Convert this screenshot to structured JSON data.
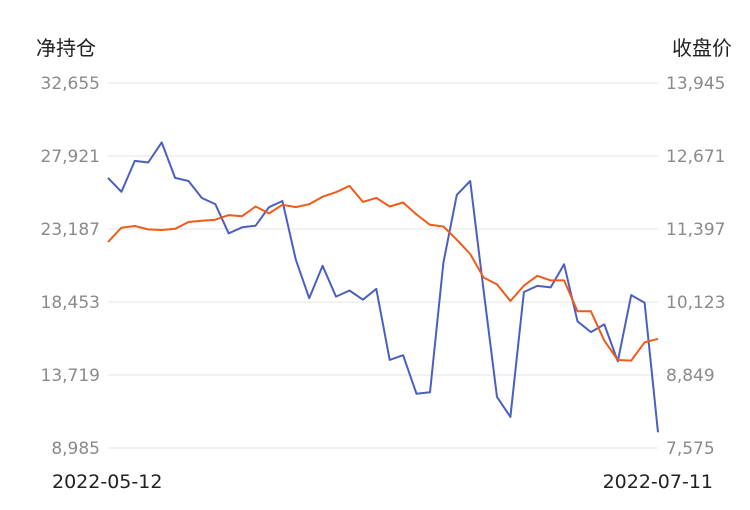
{
  "chart_data": {
    "type": "line",
    "left_axis": {
      "label": "净持仓",
      "ticks": [
        "32,655",
        "27,921",
        "23,187",
        "18,453",
        "13,719",
        "8,985"
      ],
      "ylim": [
        8985,
        32655
      ]
    },
    "right_axis": {
      "label": "收盘价",
      "ticks": [
        "13,945",
        "12,671",
        "11,397",
        "10,123",
        "8,849",
        "7,575"
      ],
      "ylim": [
        7575,
        13945
      ]
    },
    "x_labels": {
      "start": "2022-05-12",
      "end": "2022-07-11"
    },
    "grid": true,
    "series": [
      {
        "color": "#4a5fc1",
        "axis": "left",
        "values": [
          26500,
          25600,
          27600,
          27500,
          28800,
          26500,
          26300,
          25200,
          24800,
          22900,
          23300,
          23400,
          24600,
          25000,
          21200,
          18700,
          20800,
          18800,
          19200,
          18600,
          19300,
          14700,
          15000,
          12500,
          12600,
          21000,
          25400,
          26300,
          19200,
          12300,
          11000,
          19100,
          19500,
          19400,
          20900,
          17200,
          16500,
          17000,
          14600,
          18900,
          18400,
          10000
        ]
      },
      {
        "color": "#f05a1a",
        "axis": "right",
        "values": [
          11170,
          11420,
          11450,
          11390,
          11380,
          11400,
          11520,
          11540,
          11560,
          11640,
          11620,
          11790,
          11670,
          11820,
          11780,
          11830,
          11960,
          12040,
          12150,
          11870,
          11940,
          11790,
          11860,
          11650,
          11470,
          11440,
          11210,
          10960,
          10550,
          10430,
          10140,
          10410,
          10580,
          10500,
          10500,
          9960,
          9960,
          9450,
          9110,
          9100,
          9420,
          9480
        ]
      }
    ]
  }
}
